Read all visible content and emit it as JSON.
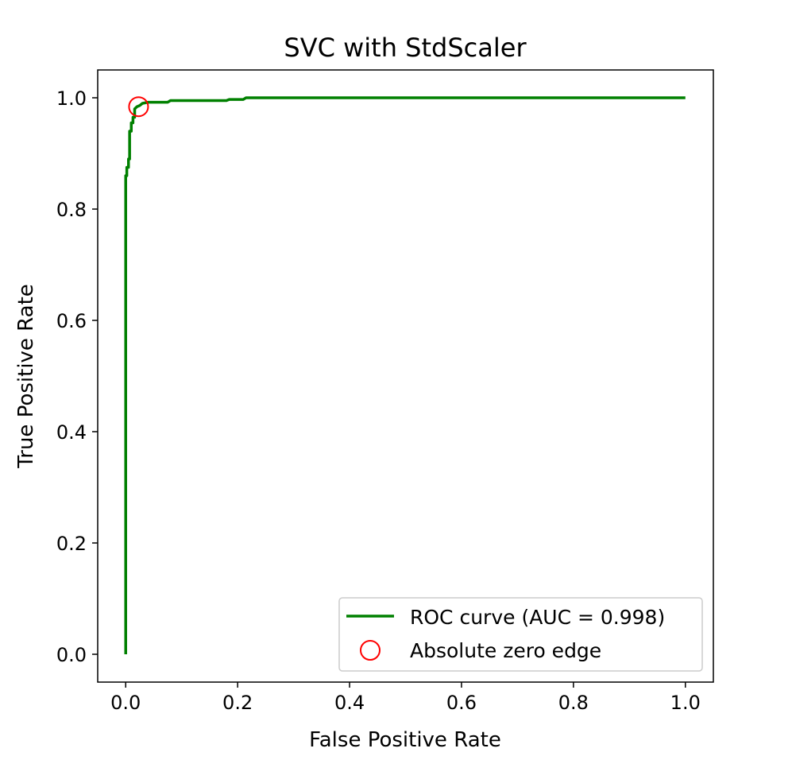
{
  "chart_data": {
    "type": "line",
    "title": "SVC with StdScaler",
    "xlabel": "False Positive Rate",
    "ylabel": "True Positive Rate",
    "xlim": [
      -0.05,
      1.05
    ],
    "ylim": [
      -0.05,
      1.05
    ],
    "xticks": [
      0.0,
      0.2,
      0.4,
      0.6,
      0.8,
      1.0
    ],
    "xtick_labels": [
      "0.0",
      "0.2",
      "0.4",
      "0.6",
      "0.8",
      "1.0"
    ],
    "yticks": [
      0.0,
      0.2,
      0.4,
      0.6,
      0.8,
      1.0
    ],
    "ytick_labels": [
      "0.0",
      "0.2",
      "0.4",
      "0.6",
      "0.8",
      "1.0"
    ],
    "grid": false,
    "legend_position": "lower-right",
    "series": [
      {
        "name": "ROC curve (AUC = 0.998)",
        "kind": "line",
        "color": "#008000",
        "x": [
          0.0,
          0.0,
          0.002,
          0.002,
          0.005,
          0.005,
          0.007,
          0.007,
          0.01,
          0.01,
          0.013,
          0.013,
          0.016,
          0.016,
          0.02,
          0.025,
          0.03,
          0.04,
          0.05,
          0.075,
          0.08,
          0.12,
          0.18,
          0.185,
          0.21,
          0.215,
          0.3,
          1.0
        ],
        "y": [
          0.0,
          0.86,
          0.86,
          0.875,
          0.875,
          0.89,
          0.89,
          0.94,
          0.94,
          0.955,
          0.955,
          0.965,
          0.965,
          0.98,
          0.984,
          0.986,
          0.99,
          0.992,
          0.992,
          0.992,
          0.995,
          0.995,
          0.995,
          0.997,
          0.997,
          1.0,
          1.0,
          1.0
        ]
      },
      {
        "name": "Absolute zero edge",
        "kind": "marker",
        "color": "#ff0000",
        "x": [
          0.023
        ],
        "y": [
          0.984
        ]
      }
    ]
  }
}
